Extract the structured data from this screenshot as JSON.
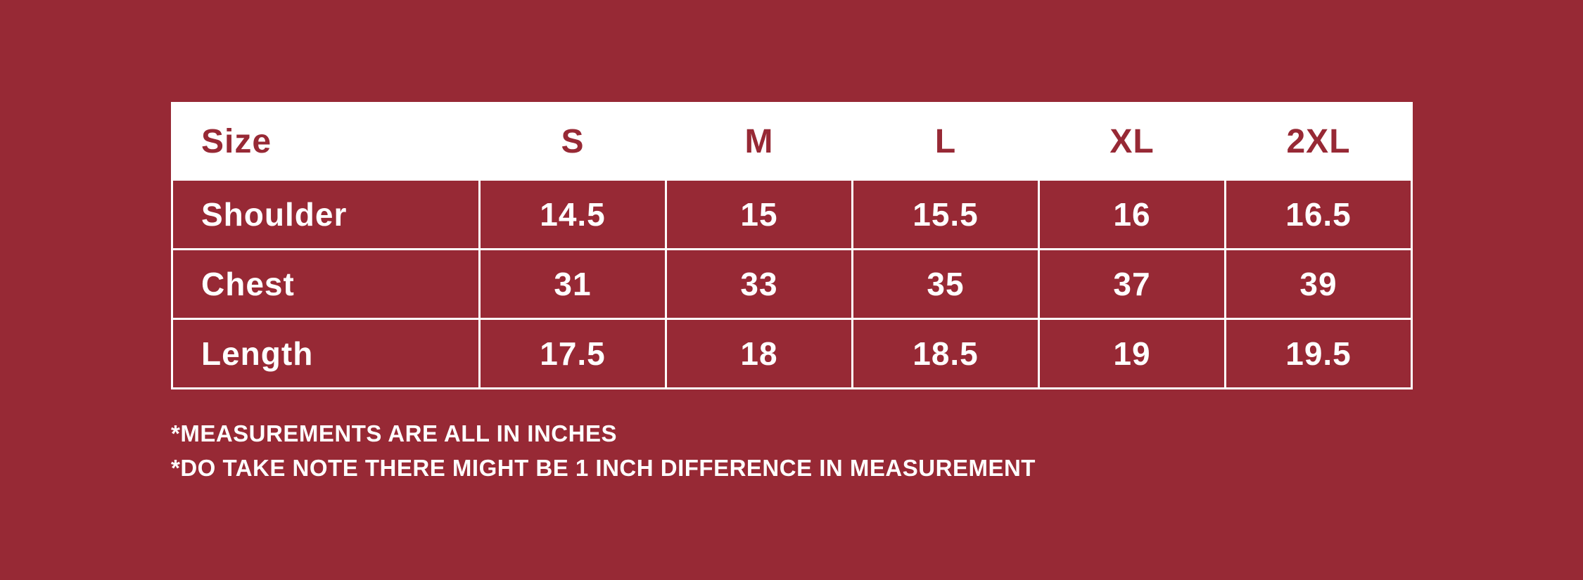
{
  "page": {
    "background_color": "#972935",
    "table_line_color": "#ffffff",
    "header_bg_color": "#ffffff",
    "header_text_color": "#972935",
    "body_text_color": "#ffffff"
  },
  "size_chart": {
    "columns": [
      "Size",
      "S",
      "M",
      "L",
      "XL",
      "2XL"
    ],
    "rows": [
      {
        "label": "Shoulder",
        "values": [
          "14.5",
          "15",
          "15.5",
          "16",
          "16.5"
        ]
      },
      {
        "label": "Chest",
        "values": [
          "31",
          "33",
          "35",
          "37",
          "39"
        ]
      },
      {
        "label": "Length",
        "values": [
          "17.5",
          "18",
          "18.5",
          "19",
          "19.5"
        ]
      }
    ]
  },
  "notes": {
    "line1": "*MEASUREMENTS ARE ALL IN INCHES",
    "line2": "*DO TAKE NOTE THERE MIGHT BE 1 INCH DIFFERENCE IN MEASUREMENT"
  },
  "chart_data": {
    "type": "table",
    "categories": [
      "S",
      "M",
      "L",
      "XL",
      "2XL"
    ],
    "series": [
      {
        "name": "Shoulder",
        "values": [
          14.5,
          15,
          15.5,
          16,
          16.5
        ]
      },
      {
        "name": "Chest",
        "values": [
          31,
          33,
          35,
          37,
          39
        ]
      },
      {
        "name": "Length",
        "values": [
          17.5,
          18,
          18.5,
          19,
          19.5
        ]
      }
    ],
    "units": "inches",
    "annotations": [
      "*MEASUREMENTS ARE ALL IN INCHES",
      "*DO TAKE NOTE THERE MIGHT BE 1 INCH DIFFERENCE IN MEASUREMENT"
    ]
  }
}
